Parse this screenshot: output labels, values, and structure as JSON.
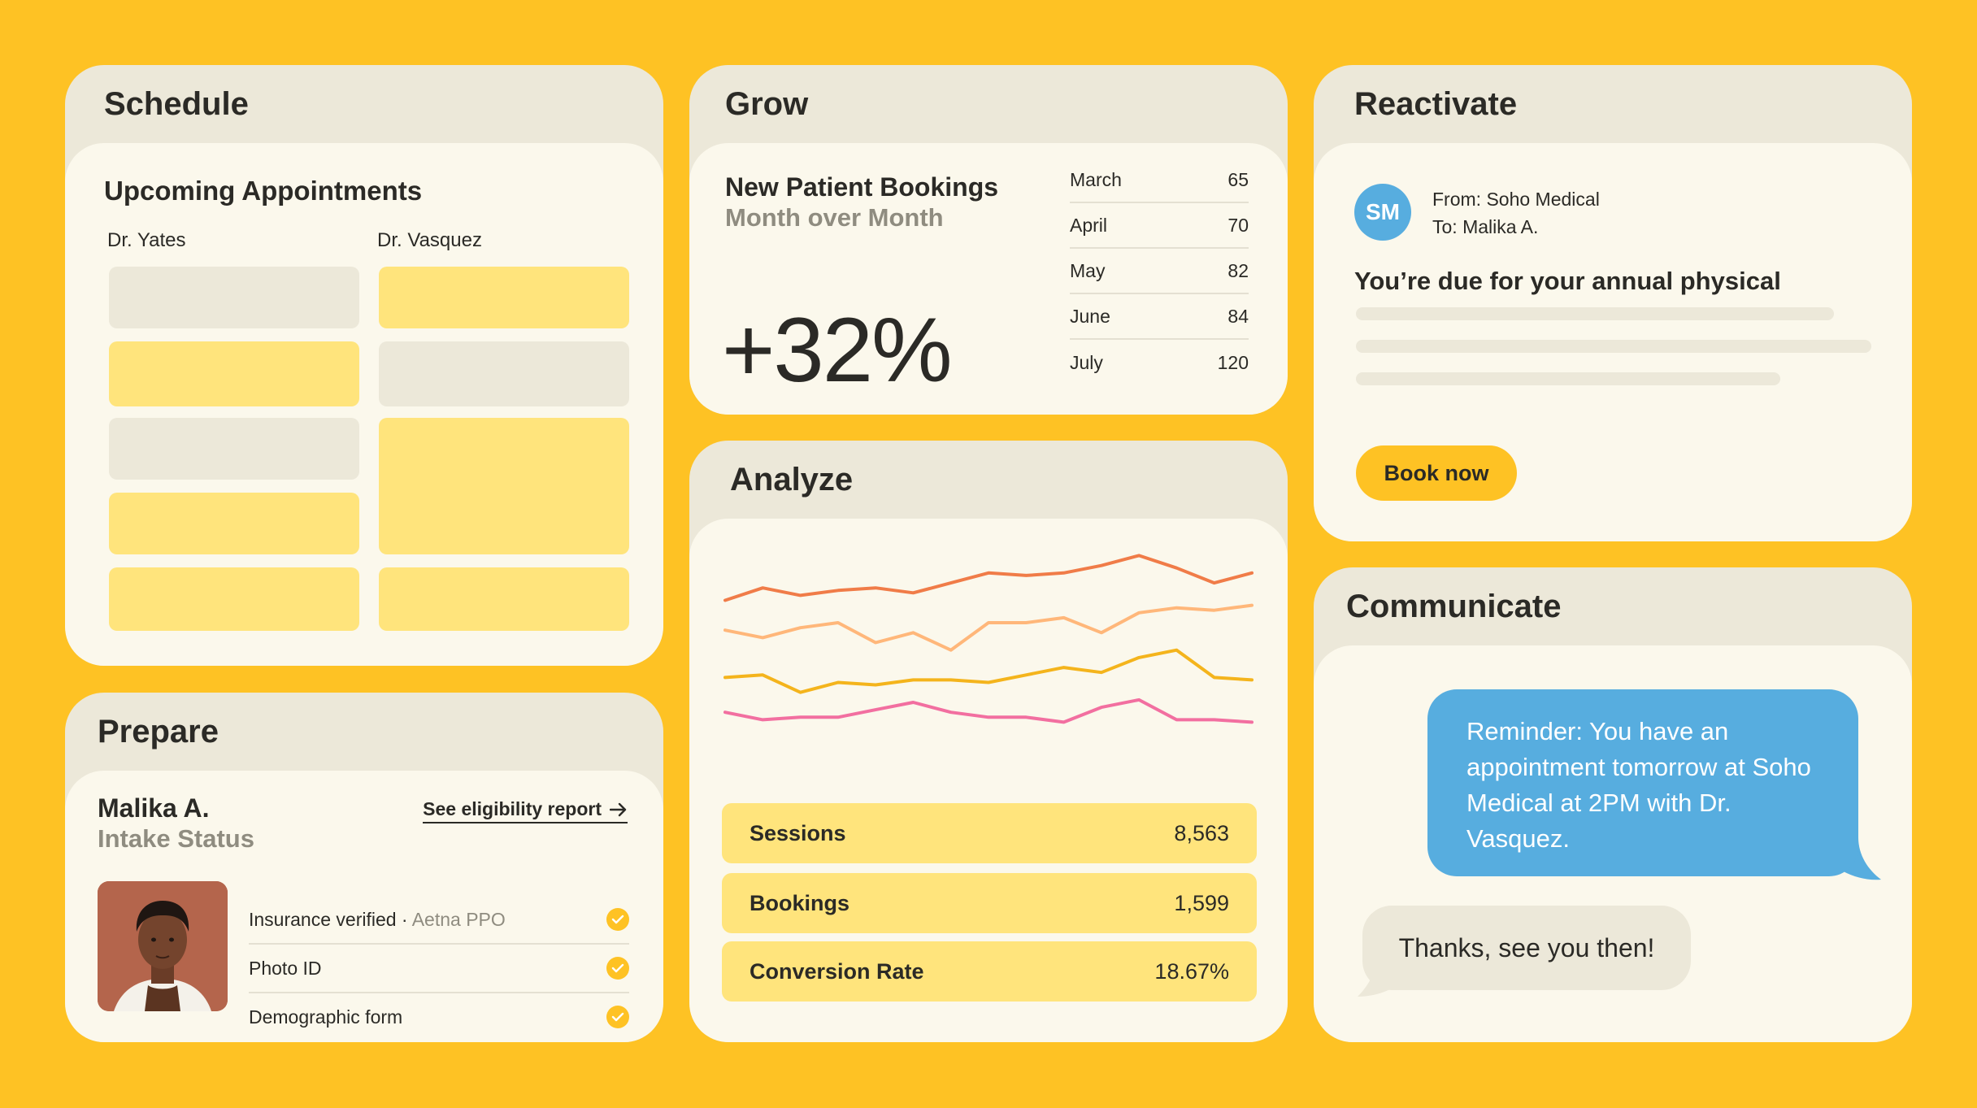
{
  "schedule": {
    "title": "Schedule",
    "subtitle": "Upcoming Appointments",
    "doctors": [
      "Dr. Yates",
      "Dr. Vasquez"
    ]
  },
  "prepare": {
    "title": "Prepare",
    "patient_name": "Malika A.",
    "status_label": "Intake Status",
    "eligibility_link": "See eligibility report",
    "checks": [
      {
        "label": "Insurance verified · ",
        "detail": "Aetna PPO"
      },
      {
        "label": "Photo ID",
        "detail": ""
      },
      {
        "label": "Demographic form",
        "detail": ""
      }
    ]
  },
  "grow": {
    "title": "Grow",
    "chart_title": "New Patient Bookings",
    "chart_subtitle": "Month over Month",
    "big_value": "+32%",
    "months": [
      {
        "month": "March",
        "value": "65"
      },
      {
        "month": "April",
        "value": "70"
      },
      {
        "month": "May",
        "value": "82"
      },
      {
        "month": "June",
        "value": "84"
      },
      {
        "month": "July",
        "value": "120"
      }
    ]
  },
  "analyze": {
    "title": "Analyze",
    "stats": [
      {
        "label": "Sessions",
        "value": "8,563"
      },
      {
        "label": "Bookings",
        "value": "1,599"
      },
      {
        "label": "Conversion Rate",
        "value": "18.67%"
      }
    ]
  },
  "chart_data": {
    "type": "line",
    "title": "",
    "xlabel": "",
    "ylabel": "",
    "grid": false,
    "x": [
      1,
      2,
      3,
      4,
      5,
      6,
      7,
      8,
      9,
      10,
      11,
      12,
      13,
      14,
      15
    ],
    "ylim": [
      0,
      100
    ],
    "series": [
      {
        "color": "#F07C48",
        "values": [
          75,
          80,
          77,
          79,
          80,
          78,
          82,
          86,
          85,
          86,
          89,
          93,
          88,
          82,
          86
        ]
      },
      {
        "color": "#FFB77A",
        "values": [
          63,
          60,
          64,
          66,
          58,
          62,
          55,
          66,
          66,
          68,
          62,
          70,
          72,
          71,
          73
        ]
      },
      {
        "color": "#F4B41C",
        "values": [
          44,
          45,
          38,
          42,
          41,
          43,
          43,
          42,
          45,
          48,
          46,
          52,
          55,
          44,
          43
        ]
      },
      {
        "color": "#F26FA0",
        "values": [
          30,
          27,
          28,
          28,
          31,
          34,
          30,
          28,
          28,
          26,
          32,
          35,
          27,
          27,
          26
        ]
      }
    ]
  },
  "reactivate": {
    "title": "Reactivate",
    "avatar_initials": "SM",
    "from_line": "From: Soho Medical",
    "to_line": "To: Malika A.",
    "headline": "You’re due for your annual physical",
    "button_label": "Book now"
  },
  "communicate": {
    "title": "Communicate",
    "outgoing_message": "Reminder: You have an appointment tomorrow at Soho Medical at 2PM with Dr. Vasquez.",
    "incoming_message": "Thanks, see you then!"
  },
  "colors": {
    "background": "#FEC224",
    "card_header": "#ECE8D9",
    "card_body": "#FBF8EC",
    "slot_yellow": "#FFE47C",
    "accent_blue": "#57ADDF"
  }
}
